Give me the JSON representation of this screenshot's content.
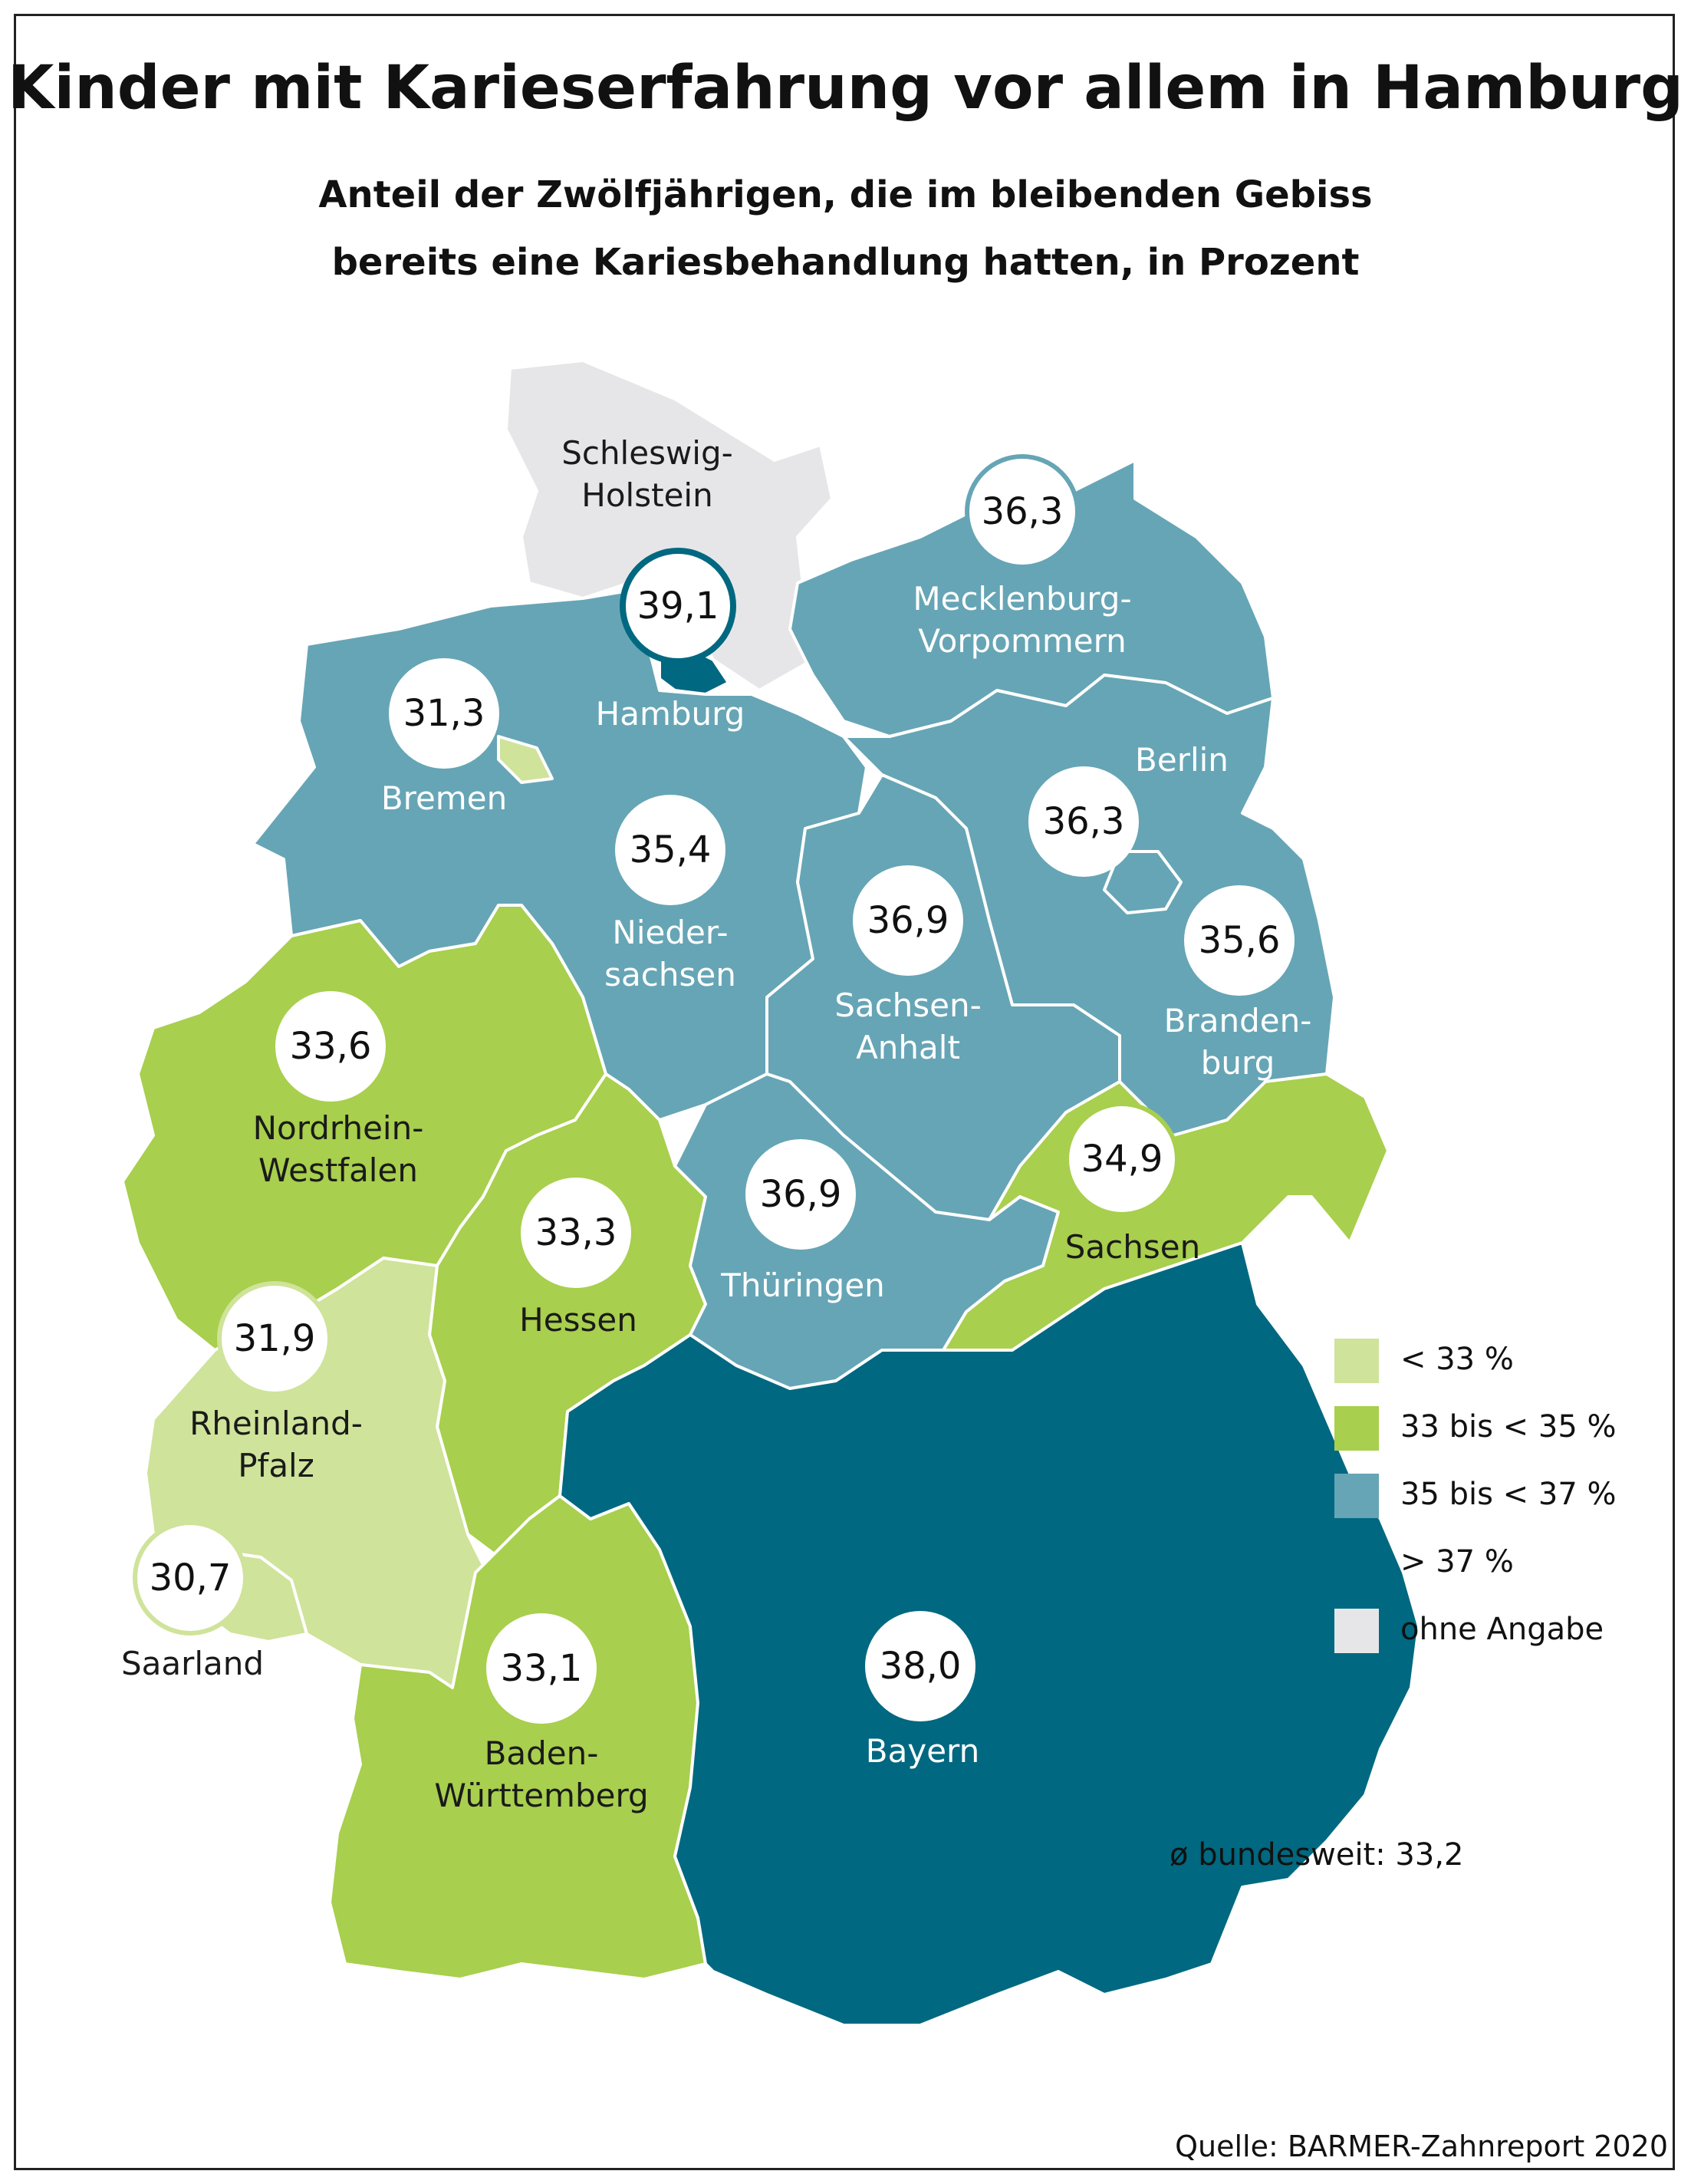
{
  "title": "Kinder mit Karieserfahrung vor allem in Hamburg",
  "subtitle": {
    "line1": "Anteil der Zwölfjährigen, die im bleibenden Gebiss",
    "line2": "bereits eine Kariesbehandlung hatten, in Prozent"
  },
  "colors": {
    "lt33": "#cfe39a",
    "33to35": "#a8cf4d",
    "35to37": "#66a5b5",
    "gt37": "#006880",
    "na": "#e6e6e8"
  },
  "states": {
    "schleswig_holstein": {
      "name_line1": "Schleswig-",
      "name_line2": "Holstein",
      "category": "ohne Angabe"
    },
    "hamburg": {
      "name": "Hamburg",
      "value": "39,1",
      "category": "> 37 %"
    },
    "mecklenburg_vorpommern": {
      "name_line1": "Mecklenburg-",
      "name_line2": "Vorpommern",
      "value": "36,3",
      "category": "35 bis < 37 %"
    },
    "bremen": {
      "name": "Bremen",
      "value": "31,3",
      "category": "< 33 %"
    },
    "niedersachsen": {
      "name_line1": "Nieder-",
      "name_line2": "sachsen",
      "value": "35,4",
      "category": "35 bis < 37 %"
    },
    "berlin": {
      "name": "Berlin",
      "value": "36,3",
      "category": "35 bis < 37 %"
    },
    "brandenburg": {
      "name_line1": "Branden-",
      "name_line2": "burg",
      "value": "35,6",
      "category": "35 bis < 37 %"
    },
    "sachsen_anhalt": {
      "name_line1": "Sachsen-",
      "name_line2": "Anhalt",
      "value": "36,9",
      "category": "35 bis < 37 %"
    },
    "nordrhein_westfalen": {
      "name_line1": "Nordrhein-",
      "name_line2": "Westfalen",
      "value": "33,6",
      "category": "33 bis < 35 %"
    },
    "sachsen": {
      "name": "Sachsen",
      "value": "34,9",
      "category": "33 bis < 35 %"
    },
    "thueringen": {
      "name": "Thüringen",
      "value": "36,9",
      "category": "35 bis < 37 %"
    },
    "hessen": {
      "name": "Hessen",
      "value": "33,3",
      "category": "33 bis < 35 %"
    },
    "rheinland_pfalz": {
      "name_line1": "Rheinland-",
      "name_line2": "Pfalz",
      "value": "31,9",
      "category": "< 33 %"
    },
    "saarland": {
      "name": "Saarland",
      "value": "30,7",
      "category": "< 33 %"
    },
    "baden_wuerttemberg": {
      "name_line1": "Baden-",
      "name_line2": "Württemberg",
      "value": "33,1",
      "category": "33 bis < 35 %"
    },
    "bayern": {
      "name": "Bayern",
      "value": "38,0",
      "category": "> 37 %"
    }
  },
  "legend": [
    {
      "label": "< 33 %",
      "color": "#cfe39a"
    },
    {
      "label": "33 bis < 35 %",
      "color": "#a8cf4d"
    },
    {
      "label": "35 bis < 37 %",
      "color": "#66a5b5"
    },
    {
      "label": "> 37 %",
      "color": "#006880"
    },
    {
      "label": "ohne Angabe",
      "color": "#e6e6e8"
    }
  ],
  "average": "ø bundesweit: 33,2",
  "source": "Quelle: BARMER-Zahnreport 2020"
}
